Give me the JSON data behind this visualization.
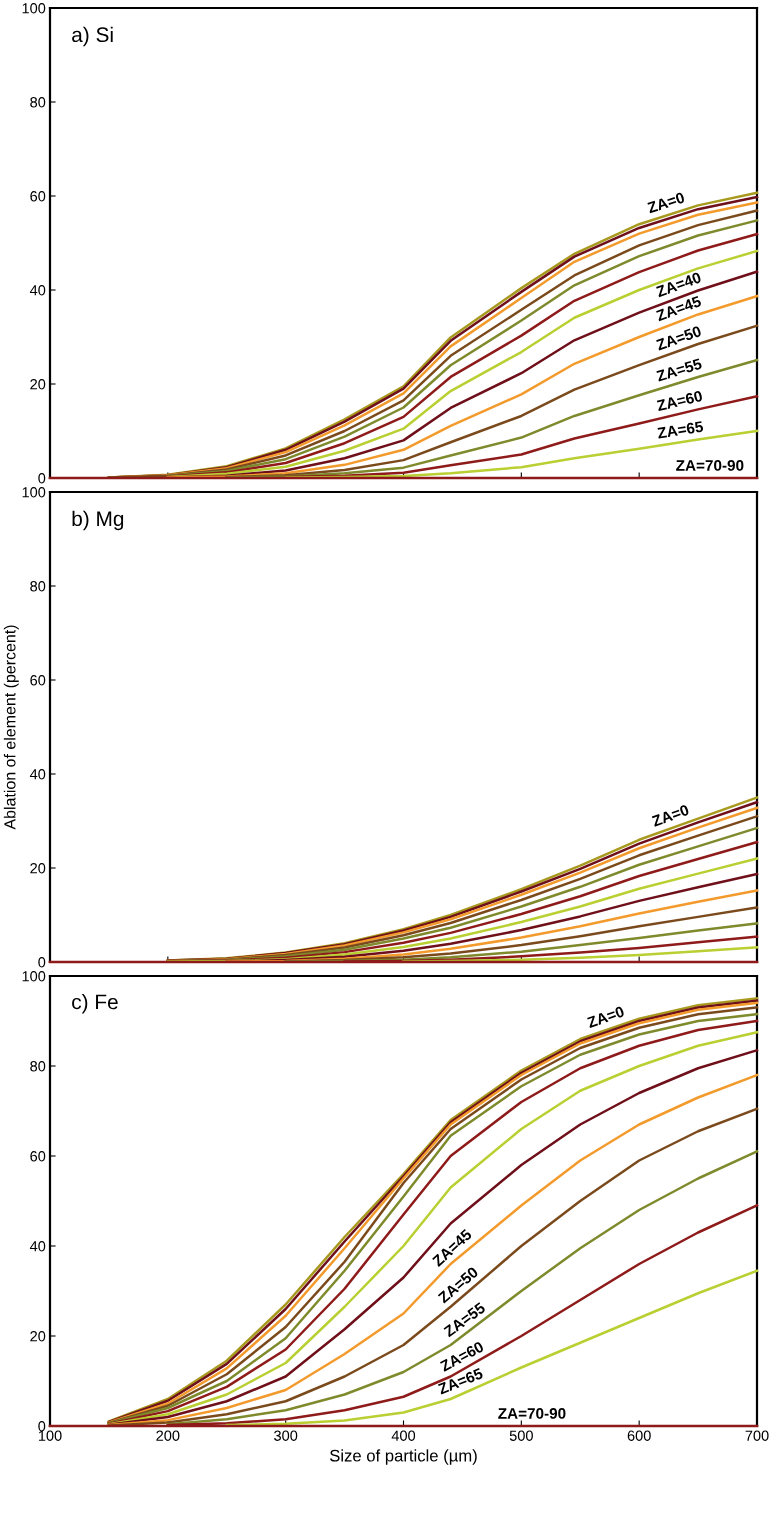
{
  "chart_data": [
    {
      "type": "line",
      "title": "a) Si",
      "x": [
        100,
        150,
        200,
        250,
        300,
        350,
        400,
        440,
        500,
        545,
        600,
        650,
        700
      ],
      "xlim": [
        100,
        700
      ],
      "xticks": [
        100,
        200,
        300,
        400,
        500,
        600,
        700
      ],
      "ylim": [
        0,
        100
      ],
      "yticks": [
        0,
        20,
        40,
        60,
        80,
        100
      ],
      "tick_labels": "y",
      "series": [
        {
          "color": "#a89a1e",
          "values": [
            null,
            0.1,
            0.7,
            2.5,
            6.3,
            12.5,
            19.5,
            29.9,
            40.4,
            47.7,
            54,
            58,
            60.7
          ]
        },
        {
          "color": "#6e0f1a",
          "values": [
            null,
            0.1,
            0.6,
            2.3,
            6.0,
            12,
            19,
            29.2,
            39.6,
            47.1,
            53.2,
            57.2,
            59.8
          ]
        },
        {
          "color": "#f39a2c",
          "values": [
            null,
            0.1,
            0.6,
            2.1,
            5.5,
            11.2,
            18,
            28,
            38.3,
            46,
            52,
            56,
            58.6
          ]
        },
        {
          "color": "#7b4a1c",
          "values": [
            null,
            0.1,
            0.5,
            1.8,
            4.8,
            10,
            16.5,
            26,
            35.8,
            43.1,
            49.5,
            53.8,
            56.9
          ]
        },
        {
          "color": "#7e8a2c",
          "values": [
            null,
            null,
            0.4,
            1.5,
            4.0,
            8.8,
            15,
            24,
            33.5,
            41,
            47.2,
            51.6,
            54.8
          ]
        },
        {
          "color": "#8e1a1a",
          "values": [
            null,
            null,
            0.3,
            1.2,
            3.2,
            7.4,
            13,
            21.5,
            30.3,
            37.7,
            43.8,
            48.4,
            51.9
          ]
        },
        {
          "color": "#b9cf32",
          "values": [
            null,
            null,
            0.2,
            0.9,
            2.4,
            5.8,
            10.5,
            18.5,
            26.8,
            34.1,
            40,
            44.6,
            48.3
          ]
        },
        {
          "color": "#6e0f1a",
          "values": [
            null,
            null,
            0.1,
            0.5,
            1.6,
            4.2,
            8,
            14.9,
            22.3,
            29.3,
            35.2,
            39.9,
            43.9
          ]
        },
        {
          "color": "#f39a2c",
          "values": [
            null,
            null,
            0.1,
            0.3,
            1.0,
            2.8,
            6,
            11.1,
            17.8,
            24.3,
            30,
            34.8,
            38.7
          ]
        },
        {
          "color": "#7b4a1c",
          "values": [
            null,
            null,
            null,
            0.2,
            0.6,
            1.7,
            3.8,
            7.6,
            13.2,
            18.8,
            24,
            28.5,
            32.4
          ]
        },
        {
          "color": "#7e8a2c",
          "values": [
            null,
            null,
            null,
            0.1,
            0.3,
            1,
            2.2,
            4.8,
            8.6,
            13.2,
            17.6,
            21.5,
            25.1
          ]
        },
        {
          "color": "#8e1a1a",
          "values": [
            null,
            null,
            null,
            null,
            0.2,
            0.5,
            1.1,
            2.7,
            5,
            8.4,
            11.6,
            14.6,
            17.4
          ]
        },
        {
          "color": "#b9cf32",
          "values": [
            null,
            null,
            null,
            null,
            0.1,
            0.2,
            0.4,
            1.0,
            2.3,
            4.2,
            6.2,
            8.2,
            10
          ]
        },
        {
          "color": "#8e1a1a",
          "values": [
            0,
            0,
            0,
            0,
            0,
            0,
            0,
            0,
            0,
            0,
            0,
            0,
            0
          ]
        }
      ],
      "annotations": [
        {
          "text": "ZA=0",
          "x": 625,
          "y": 56
        },
        {
          "text": "ZA=40",
          "x": 636,
          "y": 38.6
        },
        {
          "text": "ZA=45",
          "x": 636,
          "y": 33.5
        },
        {
          "text": "ZA=50",
          "x": 636,
          "y": 27.2
        },
        {
          "text": "ZA=55",
          "x": 636,
          "y": 20.4
        },
        {
          "text": "ZA=60",
          "x": 636,
          "y": 13.8
        },
        {
          "text": "ZA=65",
          "x": 636,
          "y": 7.6
        },
        {
          "text": "ZA=70-90",
          "x": 660,
          "y": 0
        }
      ]
    },
    {
      "type": "line",
      "title": "b) Mg",
      "ylabel": "Ablation of element (percent)",
      "x": [
        100,
        200,
        250,
        300,
        350,
        400,
        440,
        500,
        550,
        600,
        650,
        700
      ],
      "xlim": [
        100,
        700
      ],
      "xticks": [
        100,
        200,
        300,
        400,
        500,
        600,
        700
      ],
      "ylim": [
        0,
        100
      ],
      "yticks": [
        0,
        20,
        40,
        60,
        80,
        100
      ],
      "tick_labels": "y",
      "series": [
        {
          "color": "#a89a1e",
          "values": [
            null,
            0.3,
            0.8,
            2.0,
            4.0,
            7.0,
            10.0,
            15.5,
            20.5,
            26,
            30.5,
            35
          ]
        },
        {
          "color": "#6e0f1a",
          "values": [
            null,
            0.3,
            0.7,
            1.9,
            3.8,
            6.7,
            9.6,
            15,
            19.8,
            25.2,
            29.7,
            34
          ]
        },
        {
          "color": "#f39a2c",
          "values": [
            null,
            0.2,
            0.6,
            1.7,
            3.5,
            6.3,
            9.1,
            14.3,
            19,
            24.2,
            28.6,
            32.8
          ]
        },
        {
          "color": "#7b4a1c",
          "values": [
            null,
            0.2,
            0.5,
            1.5,
            3.1,
            5.7,
            8.3,
            13.2,
            17.7,
            22.7,
            26.9,
            31
          ]
        },
        {
          "color": "#7e8a2c",
          "values": [
            null,
            0.1,
            0.4,
            1.2,
            2.6,
            5,
            7.3,
            11.8,
            16,
            20.7,
            24.6,
            28.5
          ]
        },
        {
          "color": "#8e1a1a",
          "values": [
            null,
            0.1,
            0.3,
            0.9,
            2.1,
            4.1,
            6.2,
            10.2,
            14,
            18.3,
            21.9,
            25.5
          ]
        },
        {
          "color": "#b9cf32",
          "values": [
            null,
            0.1,
            0.2,
            0.6,
            1.6,
            3.2,
            5,
            8.5,
            11.8,
            15.6,
            18.8,
            22
          ]
        },
        {
          "color": "#6e0f1a",
          "values": [
            null,
            null,
            0.1,
            0.4,
            1.1,
            2.4,
            3.9,
            6.8,
            9.7,
            13,
            15.9,
            18.7
          ]
        },
        {
          "color": "#f39a2c",
          "values": [
            null,
            null,
            0.1,
            0.2,
            0.7,
            1.6,
            2.8,
            5.2,
            7.6,
            10.3,
            12.8,
            15.2
          ]
        },
        {
          "color": "#7b4a1c",
          "values": [
            null,
            null,
            null,
            0.1,
            0.4,
            1,
            1.8,
            3.6,
            5.5,
            7.6,
            9.6,
            11.6
          ]
        },
        {
          "color": "#7e8a2c",
          "values": [
            null,
            null,
            null,
            0.1,
            0.2,
            0.5,
            1,
            2.2,
            3.6,
            5.1,
            6.7,
            8.2
          ]
        },
        {
          "color": "#8e1a1a",
          "values": [
            null,
            null,
            null,
            null,
            0.1,
            0.2,
            0.5,
            1.2,
            2,
            3,
            4.2,
            5.4
          ]
        },
        {
          "color": "#b9cf32",
          "values": [
            null,
            null,
            null,
            null,
            null,
            0.1,
            0.2,
            0.5,
            0.9,
            1.5,
            2.3,
            3.1
          ]
        },
        {
          "color": "#8e1a1a",
          "values": [
            0,
            0,
            0,
            0,
            0,
            0,
            0,
            0,
            0,
            0,
            0,
            0
          ]
        }
      ],
      "annotations": [
        {
          "text": "ZA=0",
          "x": 629,
          "y": 28.6
        }
      ]
    },
    {
      "type": "line",
      "title": "c) Fe",
      "xlabel": "Size of particle (µm)",
      "x": [
        100,
        150,
        200,
        250,
        300,
        350,
        400,
        440,
        500,
        550,
        600,
        650,
        700
      ],
      "xlim": [
        100,
        700
      ],
      "xticks": [
        100,
        200,
        300,
        400,
        500,
        600,
        700
      ],
      "ylim": [
        0,
        100
      ],
      "yticks": [
        0,
        20,
        40,
        60,
        80,
        100
      ],
      "series": [
        {
          "color": "#a89a1e",
          "values": [
            null,
            1,
            6,
            14.5,
            27,
            42,
            56,
            68,
            79,
            86,
            90.5,
            93.5,
            95
          ]
        },
        {
          "color": "#6e0f1a",
          "values": [
            null,
            0.9,
            5.6,
            13.8,
            26,
            41,
            55.5,
            67.5,
            78.5,
            85.5,
            90,
            93,
            94.5
          ]
        },
        {
          "color": "#f39a2c",
          "values": [
            null,
            0.8,
            5,
            12.8,
            24.5,
            39.5,
            55,
            67,
            78,
            85,
            89.5,
            92.5,
            94
          ]
        },
        {
          "color": "#7b4a1c",
          "values": [
            null,
            0.7,
            4.5,
            11.5,
            22,
            36.5,
            54,
            66,
            77,
            84,
            88.5,
            91.5,
            93
          ]
        },
        {
          "color": "#7e8a2c",
          "values": [
            null,
            0.6,
            4,
            10,
            19.5,
            34.5,
            51,
            64.5,
            75.5,
            82.5,
            87,
            90,
            91.5
          ]
        },
        {
          "color": "#8e1a1a",
          "values": [
            null,
            0.5,
            3.3,
            8.7,
            17,
            30.5,
            47,
            60,
            72,
            79.5,
            84.5,
            88,
            90
          ]
        },
        {
          "color": "#b9cf32",
          "values": [
            null,
            0.4,
            2.6,
            7,
            14,
            26.5,
            40,
            53,
            66,
            74.5,
            80,
            84.5,
            87.5
          ]
        },
        {
          "color": "#6e0f1a",
          "values": [
            null,
            0.3,
            2,
            5.5,
            11,
            21.5,
            33,
            45,
            58,
            67,
            74,
            79.5,
            83.5
          ]
        },
        {
          "color": "#f39a2c",
          "values": [
            null,
            0.2,
            1.3,
            4,
            8,
            16,
            25,
            36,
            49,
            59,
            67,
            73,
            78
          ]
        },
        {
          "color": "#7b4a1c",
          "values": [
            null,
            0.1,
            0.8,
            2.6,
            5.5,
            11,
            18,
            26.5,
            40,
            50,
            59,
            65.5,
            70.5
          ]
        },
        {
          "color": "#7e8a2c",
          "values": [
            null,
            null,
            0.4,
            1.5,
            3.5,
            7,
            12,
            18,
            30,
            39.5,
            48,
            55,
            61
          ]
        },
        {
          "color": "#8e1a1a",
          "values": [
            null,
            null,
            0.2,
            0.6,
            1.5,
            3.5,
            6.5,
            11,
            20,
            28,
            36,
            43,
            49
          ]
        },
        {
          "color": "#b9cf32",
          "values": [
            null,
            null,
            null,
            0.2,
            0.5,
            1.2,
            3,
            6,
            13,
            18.5,
            24,
            29.5,
            34.5
          ]
        },
        {
          "color": "#8e1a1a",
          "values": [
            0,
            0,
            0,
            0,
            0,
            0,
            0,
            0,
            0,
            0,
            0,
            0,
            0
          ]
        }
      ],
      "annotations": [
        {
          "text": "ZA=0",
          "x": 574,
          "y": 88.2
        },
        {
          "text": "ZA=45",
          "x": 446,
          "y": 37.3
        },
        {
          "text": "ZA=50",
          "x": 451,
          "y": 29
        },
        {
          "text": "ZA=55",
          "x": 456,
          "y": 21.2
        },
        {
          "text": "ZA=60",
          "x": 453,
          "y": 12.9
        },
        {
          "text": "ZA=65",
          "x": 451,
          "y": 7.3
        },
        {
          "text": "ZA=70-90",
          "x": 509,
          "y": 0
        }
      ]
    }
  ]
}
